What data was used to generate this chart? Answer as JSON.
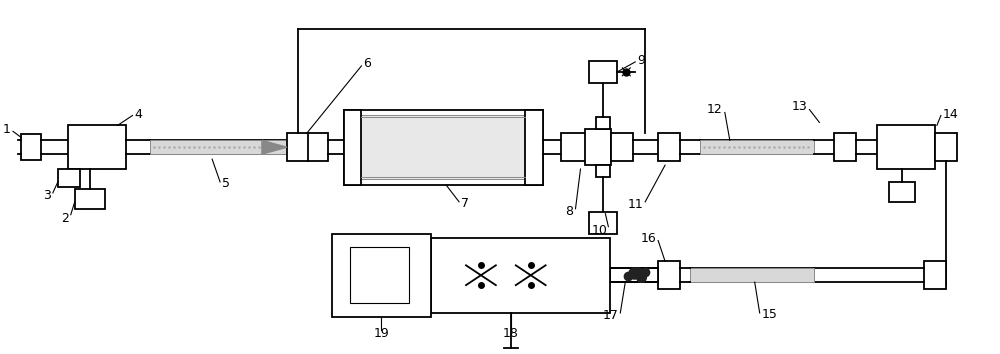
{
  "bg_color": "#ffffff",
  "lw": 1.3,
  "ann_lw": 0.8,
  "fs": 9
}
